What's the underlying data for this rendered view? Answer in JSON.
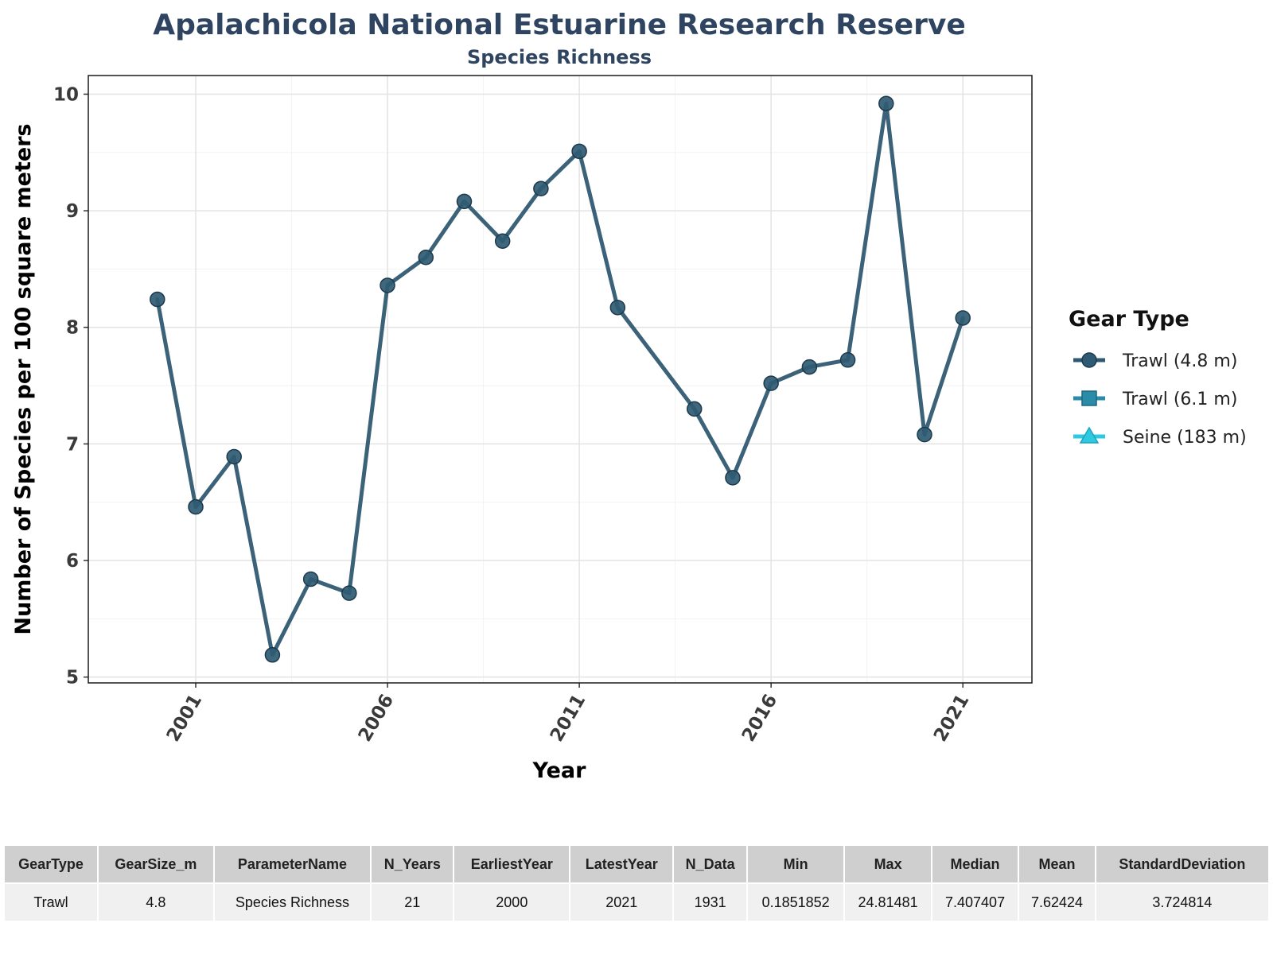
{
  "chart_data": {
    "type": "line",
    "title": "Apalachicola National Estuarine Research Reserve",
    "subtitle": "Species Richness",
    "xlabel": "Year",
    "ylabel": "Number of Species per 100 square meters",
    "xlim": [
      1998.2,
      2022.8
    ],
    "ylim": [
      4.95,
      10.16
    ],
    "xticks": [
      2001,
      2006,
      2011,
      2016,
      2021
    ],
    "yticks": [
      5,
      6,
      7,
      8,
      9,
      10
    ],
    "grid": true,
    "legend_position": "right",
    "legend": {
      "title": "Gear Type",
      "items": [
        {
          "label": "Trawl (4.8 m)",
          "marker": "circle",
          "color": "#2f5a73"
        },
        {
          "label": "Trawl (6.1 m)",
          "marker": "square",
          "color": "#2a8ca8"
        },
        {
          "label": "Seine (183 m)",
          "marker": "triangle",
          "color": "#2ec8e0"
        }
      ]
    },
    "series": [
      {
        "name": "Trawl (4.8 m)",
        "color": "#2f5a73",
        "x": [
          2000,
          2001,
          2002,
          2003,
          2004,
          2005,
          2006,
          2007,
          2008,
          2009,
          2010,
          2011,
          2012,
          2014,
          2015,
          2016,
          2017,
          2018,
          2019,
          2020,
          2021
        ],
        "y": [
          8.24,
          6.46,
          6.89,
          5.19,
          5.84,
          5.72,
          8.36,
          8.6,
          9.08,
          8.74,
          9.19,
          9.51,
          8.17,
          7.3,
          6.71,
          7.52,
          7.66,
          7.72,
          9.92,
          7.08,
          8.08
        ]
      }
    ]
  },
  "table": {
    "headers": [
      "GearType",
      "GearSize_m",
      "ParameterName",
      "N_Years",
      "EarliestYear",
      "LatestYear",
      "N_Data",
      "Min",
      "Max",
      "Median",
      "Mean",
      "StandardDeviation"
    ],
    "rows": [
      [
        "Trawl",
        "4.8",
        "Species Richness",
        "21",
        "2000",
        "2021",
        "1931",
        "0.1851852",
        "24.81481",
        "7.407407",
        "7.62424",
        "3.724814"
      ]
    ]
  }
}
